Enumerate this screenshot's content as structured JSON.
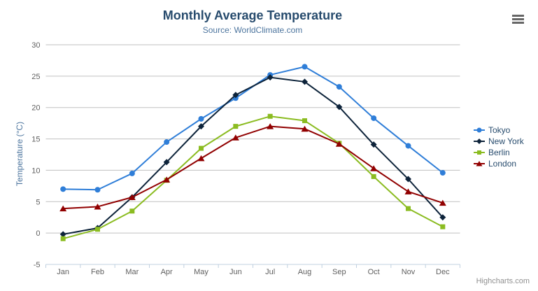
{
  "ui": {
    "credits": "Highcharts.com",
    "context_menu_icon": "hamburger-icon"
  },
  "chart_data": {
    "type": "line",
    "title": "Monthly Average Temperature",
    "subtitle": "Source: WorldClimate.com",
    "categories": [
      "Jan",
      "Feb",
      "Mar",
      "Apr",
      "May",
      "Jun",
      "Jul",
      "Aug",
      "Sep",
      "Oct",
      "Nov",
      "Dec"
    ],
    "xlabel": "",
    "ylabel": "Temperature (°C)",
    "ylim": [
      -5,
      30
    ],
    "ytick_interval": 5,
    "yticks": [
      -5,
      0,
      5,
      10,
      15,
      20,
      25,
      30
    ],
    "grid": true,
    "legend_position": "right",
    "series": [
      {
        "name": "Tokyo",
        "color": "#2f7ed8",
        "marker": "circle",
        "values": [
          7.0,
          6.9,
          9.5,
          14.5,
          18.2,
          21.5,
          25.2,
          26.5,
          23.3,
          18.3,
          13.9,
          9.6
        ]
      },
      {
        "name": "New York",
        "color": "#0d233a",
        "marker": "diamond",
        "values": [
          -0.2,
          0.8,
          5.7,
          11.3,
          17.0,
          22.0,
          24.8,
          24.1,
          20.1,
          14.1,
          8.6,
          2.5
        ]
      },
      {
        "name": "Berlin",
        "color": "#8bbc21",
        "marker": "square",
        "values": [
          -0.9,
          0.6,
          3.5,
          8.4,
          13.5,
          17.0,
          18.6,
          17.9,
          14.3,
          9.0,
          3.9,
          1.0
        ]
      },
      {
        "name": "London",
        "color": "#910000",
        "marker": "triangle",
        "values": [
          3.9,
          4.2,
          5.7,
          8.5,
          11.9,
          15.2,
          17.0,
          16.6,
          14.2,
          10.3,
          6.6,
          4.8
        ]
      }
    ],
    "colors": {
      "grid": "#c0c0c0",
      "axis_line": "#c0d0e0",
      "tick_labels": "#606060",
      "title": "#274b6d",
      "subtitle": "#4d759e",
      "axis_title": "#4d759e",
      "legend_text": "#274b6d",
      "credits": "#909090"
    }
  }
}
